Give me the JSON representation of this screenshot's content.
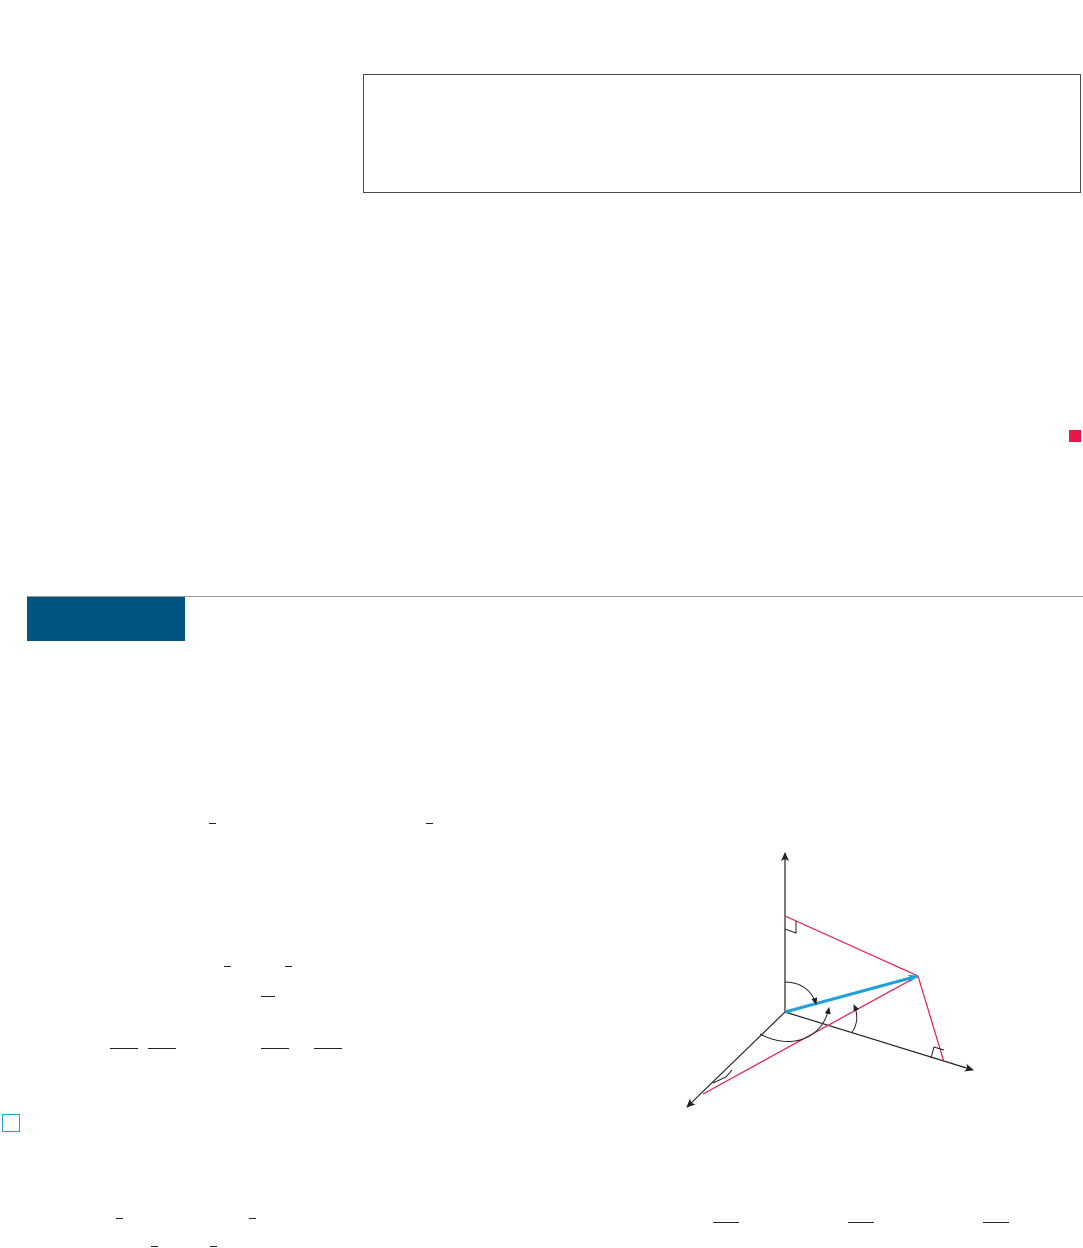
{
  "page": {
    "accent_colors": {
      "section_tab": "#005580",
      "end_of_proof_marker": "#e8174a",
      "hint_box": "#1ea0d8",
      "vector_highlight": "#1ea0d8",
      "projection_lines": "#e8174a"
    }
  },
  "figure": {
    "type": "3d-direction-angles-diagram",
    "axes": [
      "vertical-axis",
      "horizontal-axis",
      "depth-axis"
    ],
    "elements": [
      "vector",
      "projection-to-vertical-axis",
      "projection-to-horizontal-axis",
      "projection-to-depth-axis",
      "angle-with-vertical-axis",
      "angle-with-horizontal-axis",
      "angle-with-depth-axis",
      "right-angle-markers"
    ]
  }
}
